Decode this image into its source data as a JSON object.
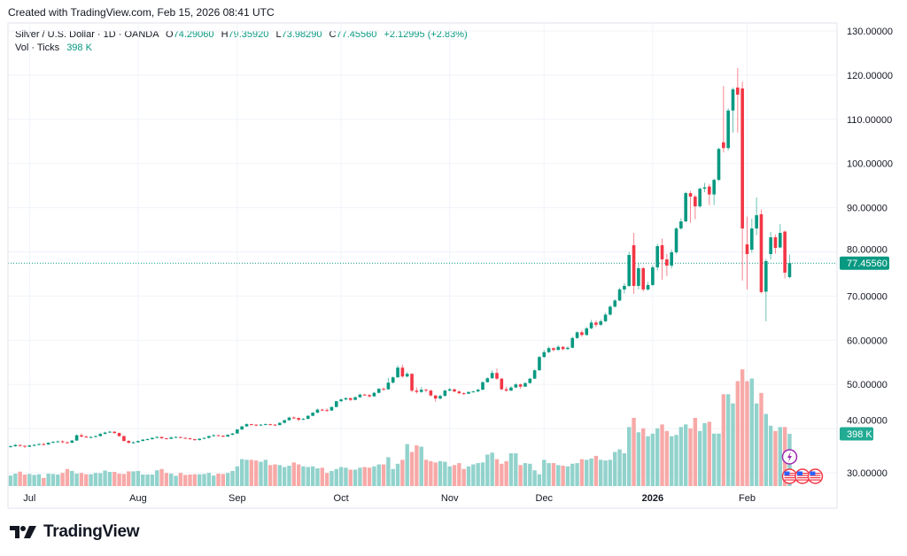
{
  "header": {
    "created_text": "Created with TradingView.com, Feb 15, 2026 08:41 UTC",
    "symbol": "Silver / U.S. Dollar · 1D · OANDA",
    "o_label": "O",
    "o_value": "74.29060",
    "h_label": "H",
    "h_value": "79.35920",
    "l_label": "L",
    "l_value": "73.98290",
    "c_label": "C",
    "c_value": "77.45560",
    "change": "+2.12995 (+2.83%)",
    "vol_label": "Vol · Ticks",
    "vol_value": "398 K"
  },
  "price_label": "77.45560",
  "volume_label": "398 K",
  "brand": "TradingView",
  "colors": {
    "up": "#089981",
    "down": "#F23645",
    "vol_up": "#92D2CC",
    "vol_down": "#F7A9A7",
    "event_purple": "#9C27B0"
  },
  "events": [
    {
      "icon": "lightning-icon"
    },
    {
      "icon": "us-flag-icon"
    },
    {
      "icon": "us-flag-icon"
    },
    {
      "icon": "us-flag-icon"
    }
  ],
  "chart_data": {
    "type": "candlestick",
    "title": "",
    "ylim": [
      25,
      132
    ],
    "y_ticks": [
      "130.00000",
      "120.00000",
      "110.00000",
      "100.00000",
      "90.00000",
      "80.00000",
      "70.00000",
      "60.00000",
      "50.00000",
      "40.00000",
      "30.00000"
    ],
    "y_tick_values": [
      130,
      120,
      110,
      100,
      90,
      80,
      70,
      60,
      50,
      40,
      30
    ],
    "x_ticks": [
      {
        "label": "Jul",
        "index": 4,
        "bold": false
      },
      {
        "label": "Aug",
        "index": 27,
        "bold": false
      },
      {
        "label": "Sep",
        "index": 48,
        "bold": false
      },
      {
        "label": "Oct",
        "index": 70,
        "bold": false
      },
      {
        "label": "Nov",
        "index": 93,
        "bold": false
      },
      {
        "label": "Dec",
        "index": 113,
        "bold": false
      },
      {
        "label": "2026",
        "index": 136,
        "bold": true
      },
      {
        "label": "Feb",
        "index": 156,
        "bold": false
      }
    ],
    "grid": true,
    "last_price": 77.4556,
    "ohlc_fields": [
      "open",
      "high",
      "low",
      "close"
    ],
    "candles": [
      [
        35.9,
        36.2,
        35.7,
        36.0
      ],
      [
        36.0,
        36.5,
        35.9,
        36.3
      ],
      [
        36.3,
        36.4,
        35.9,
        36.1
      ],
      [
        36.1,
        36.2,
        35.6,
        35.9
      ],
      [
        35.9,
        36.3,
        35.8,
        36.2
      ],
      [
        36.2,
        36.5,
        36.0,
        36.3
      ],
      [
        36.3,
        36.7,
        36.2,
        36.5
      ],
      [
        36.5,
        36.8,
        36.2,
        36.4
      ],
      [
        36.4,
        36.9,
        36.3,
        36.8
      ],
      [
        36.8,
        37.2,
        36.7,
        37.0
      ],
      [
        37.0,
        37.3,
        36.9,
        37.1
      ],
      [
        37.1,
        37.4,
        36.7,
        36.9
      ],
      [
        36.9,
        37.1,
        36.6,
        36.8
      ],
      [
        36.8,
        37.4,
        36.7,
        37.3
      ],
      [
        37.3,
        38.7,
        37.2,
        38.5
      ],
      [
        38.5,
        38.9,
        38.0,
        38.2
      ],
      [
        38.2,
        38.4,
        37.9,
        38.0
      ],
      [
        38.0,
        38.3,
        37.8,
        38.1
      ],
      [
        38.1,
        38.5,
        38.0,
        38.3
      ],
      [
        38.3,
        39.0,
        38.2,
        38.8
      ],
      [
        38.8,
        39.3,
        38.7,
        39.1
      ],
      [
        39.1,
        39.5,
        39.0,
        39.3
      ],
      [
        39.3,
        39.4,
        38.8,
        39.0
      ],
      [
        39.0,
        39.1,
        38.2,
        38.3
      ],
      [
        38.3,
        38.4,
        37.1,
        37.2
      ],
      [
        37.2,
        37.4,
        36.6,
        36.8
      ],
      [
        36.8,
        37.1,
        36.6,
        36.9
      ],
      [
        36.9,
        37.3,
        36.8,
        37.2
      ],
      [
        37.2,
        37.6,
        37.1,
        37.5
      ],
      [
        37.5,
        37.8,
        37.4,
        37.6
      ],
      [
        37.6,
        38.0,
        37.5,
        37.9
      ],
      [
        37.9,
        38.3,
        37.8,
        38.1
      ],
      [
        38.1,
        38.2,
        37.7,
        37.8
      ],
      [
        37.8,
        37.9,
        37.6,
        37.7
      ],
      [
        37.7,
        38.2,
        37.6,
        38.0
      ],
      [
        38.0,
        38.3,
        37.9,
        38.1
      ],
      [
        38.1,
        38.2,
        37.8,
        37.9
      ],
      [
        37.9,
        38.0,
        37.7,
        37.8
      ],
      [
        37.8,
        37.9,
        37.5,
        37.6
      ],
      [
        37.6,
        37.7,
        37.2,
        37.4
      ],
      [
        37.4,
        37.8,
        37.3,
        37.7
      ],
      [
        37.7,
        38.0,
        37.6,
        37.9
      ],
      [
        37.9,
        38.4,
        37.8,
        38.3
      ],
      [
        38.3,
        38.7,
        38.2,
        38.5
      ],
      [
        38.5,
        38.6,
        38.3,
        38.4
      ],
      [
        38.4,
        38.5,
        38.0,
        38.2
      ],
      [
        38.2,
        38.7,
        38.1,
        38.6
      ],
      [
        38.6,
        39.0,
        38.5,
        38.9
      ],
      [
        38.9,
        39.9,
        38.8,
        39.8
      ],
      [
        39.8,
        40.6,
        39.7,
        40.5
      ],
      [
        40.5,
        41.2,
        40.4,
        41.0
      ],
      [
        41.0,
        41.1,
        40.7,
        40.9
      ],
      [
        40.9,
        41.0,
        40.5,
        40.7
      ],
      [
        40.7,
        41.0,
        40.6,
        40.9
      ],
      [
        40.9,
        41.2,
        40.8,
        41.0
      ],
      [
        41.0,
        41.1,
        40.7,
        40.9
      ],
      [
        40.9,
        41.0,
        40.6,
        40.8
      ],
      [
        40.8,
        41.4,
        40.7,
        41.3
      ],
      [
        41.3,
        42.0,
        41.2,
        41.9
      ],
      [
        41.9,
        42.7,
        41.8,
        42.5
      ],
      [
        42.5,
        42.8,
        42.2,
        42.4
      ],
      [
        42.4,
        42.5,
        41.7,
        42.0
      ],
      [
        42.0,
        42.4,
        41.9,
        42.2
      ],
      [
        42.2,
        43.0,
        42.1,
        42.9
      ],
      [
        42.9,
        43.7,
        42.8,
        43.6
      ],
      [
        43.6,
        44.5,
        43.5,
        44.3
      ],
      [
        44.3,
        44.5,
        44.0,
        44.2
      ],
      [
        44.2,
        44.6,
        43.8,
        44.1
      ],
      [
        44.1,
        45.0,
        44.0,
        44.9
      ],
      [
        44.9,
        46.3,
        44.8,
        46.2
      ],
      [
        46.2,
        46.8,
        46.0,
        46.6
      ],
      [
        46.6,
        47.1,
        46.4,
        46.9
      ],
      [
        46.9,
        47.0,
        46.2,
        46.5
      ],
      [
        46.5,
        47.3,
        46.4,
        47.1
      ],
      [
        47.1,
        47.9,
        47.0,
        47.7
      ],
      [
        47.7,
        47.9,
        47.4,
        47.6
      ],
      [
        47.6,
        47.8,
        47.0,
        47.3
      ],
      [
        47.3,
        48.3,
        47.2,
        48.1
      ],
      [
        48.1,
        49.2,
        48.0,
        49.0
      ],
      [
        49.0,
        49.3,
        48.6,
        48.9
      ],
      [
        48.9,
        51.5,
        48.8,
        50.4
      ],
      [
        50.4,
        51.8,
        50.2,
        51.6
      ],
      [
        51.6,
        54.3,
        51.5,
        53.8
      ],
      [
        53.8,
        54.5,
        51.5,
        51.8
      ],
      [
        51.8,
        52.8,
        51.6,
        52.4
      ],
      [
        52.4,
        52.5,
        48.2,
        48.6
      ],
      [
        48.6,
        49.3,
        47.9,
        48.3
      ],
      [
        48.3,
        49.4,
        48.1,
        48.8
      ],
      [
        48.8,
        49.0,
        48.2,
        48.6
      ],
      [
        48.6,
        48.8,
        47.3,
        47.5
      ],
      [
        47.5,
        47.6,
        46.1,
        46.8
      ],
      [
        46.8,
        47.7,
        46.6,
        47.4
      ],
      [
        47.4,
        48.8,
        47.3,
        48.6
      ],
      [
        48.6,
        49.2,
        48.4,
        48.9
      ],
      [
        48.9,
        49.0,
        48.2,
        48.4
      ],
      [
        48.4,
        48.6,
        47.8,
        48.0
      ],
      [
        48.0,
        48.2,
        47.6,
        47.9
      ],
      [
        47.9,
        48.4,
        47.8,
        48.3
      ],
      [
        48.3,
        48.6,
        48.2,
        48.4
      ],
      [
        48.4,
        49.0,
        48.3,
        48.8
      ],
      [
        48.8,
        50.7,
        48.7,
        50.5
      ],
      [
        50.5,
        51.6,
        50.4,
        51.4
      ],
      [
        51.4,
        53.2,
        51.3,
        52.6
      ],
      [
        52.6,
        53.6,
        51.0,
        51.3
      ],
      [
        51.3,
        51.5,
        48.7,
        48.9
      ],
      [
        48.9,
        49.5,
        48.3,
        48.6
      ],
      [
        48.6,
        49.6,
        48.5,
        49.3
      ],
      [
        49.3,
        50.3,
        49.2,
        50.0
      ],
      [
        50.0,
        50.2,
        49.0,
        49.5
      ],
      [
        49.5,
        50.5,
        49.4,
        50.3
      ],
      [
        50.3,
        51.5,
        50.2,
        51.3
      ],
      [
        51.3,
        53.4,
        51.2,
        53.2
      ],
      [
        53.2,
        56.5,
        53.1,
        56.2
      ],
      [
        56.2,
        57.8,
        56.0,
        57.3
      ],
      [
        57.3,
        58.6,
        57.1,
        58.2
      ],
      [
        58.2,
        58.4,
        57.5,
        57.8
      ],
      [
        57.8,
        58.9,
        57.7,
        58.5
      ],
      [
        58.5,
        58.7,
        57.7,
        58.0
      ],
      [
        58.0,
        58.6,
        57.8,
        58.3
      ],
      [
        58.3,
        60.8,
        58.2,
        60.5
      ],
      [
        60.5,
        62.0,
        60.3,
        61.8
      ],
      [
        61.8,
        62.3,
        60.8,
        61.2
      ],
      [
        61.2,
        63.0,
        61.0,
        62.7
      ],
      [
        62.7,
        64.6,
        62.5,
        64.0
      ],
      [
        64.0,
        64.5,
        63.0,
        63.5
      ],
      [
        63.5,
        64.7,
        63.2,
        64.3
      ],
      [
        64.3,
        66.2,
        64.1,
        65.8
      ],
      [
        65.8,
        67.9,
        65.6,
        67.6
      ],
      [
        67.6,
        69.3,
        67.4,
        69.0
      ],
      [
        69.0,
        71.9,
        68.8,
        71.5
      ],
      [
        71.5,
        72.9,
        70.6,
        72.3
      ],
      [
        72.3,
        80.0,
        72.1,
        79.3
      ],
      [
        81.5,
        84.3,
        70.5,
        72.3
      ],
      [
        72.3,
        77.5,
        71.5,
        76.3
      ],
      [
        76.3,
        76.6,
        71.0,
        71.5
      ],
      [
        71.5,
        73.2,
        71.2,
        72.5
      ],
      [
        72.5,
        77.0,
        72.3,
        76.5
      ],
      [
        76.5,
        81.8,
        75.8,
        81.3
      ],
      [
        81.5,
        83.0,
        73.7,
        78.3
      ],
      [
        78.3,
        79.6,
        74.5,
        76.9
      ],
      [
        76.9,
        80.5,
        76.3,
        79.9
      ],
      [
        79.9,
        85.6,
        79.6,
        85.3
      ],
      [
        85.3,
        87.6,
        85.0,
        86.9
      ],
      [
        86.9,
        93.6,
        86.7,
        93.3
      ],
      [
        93.3,
        93.8,
        86.6,
        92.5
      ],
      [
        92.5,
        92.9,
        87.4,
        90.3
      ],
      [
        90.3,
        94.6,
        90.0,
        94.3
      ],
      [
        94.3,
        95.6,
        93.5,
        94.6
      ],
      [
        94.8,
        95.4,
        90.6,
        93.0
      ],
      [
        93.0,
        96.6,
        90.6,
        96.3
      ],
      [
        96.3,
        103.6,
        96.0,
        103.3
      ],
      [
        104.8,
        117.5,
        102.5,
        103.5
      ],
      [
        103.5,
        112.5,
        103.0,
        112.0
      ],
      [
        112.0,
        117.2,
        107.0,
        116.8
      ],
      [
        117.2,
        121.6,
        107.0,
        115.6
      ],
      [
        117.0,
        118.5,
        73.5,
        85.3
      ],
      [
        81.7,
        88.0,
        71.5,
        79.5
      ],
      [
        80.5,
        87.5,
        79.8,
        85.3
      ],
      [
        85.3,
        92.3,
        83.8,
        88.3
      ],
      [
        88.5,
        89.6,
        70.6,
        70.9
      ],
      [
        71.0,
        78.4,
        64.3,
        77.9
      ],
      [
        79.5,
        84.5,
        78.3,
        83.3
      ],
      [
        83.3,
        83.9,
        79.6,
        80.9
      ],
      [
        81.0,
        86.3,
        80.8,
        84.3
      ],
      [
        84.6,
        84.8,
        74.0,
        75.3
      ],
      [
        74.2906,
        79.3592,
        73.9829,
        77.4556
      ]
    ],
    "volume_unit": "K",
    "volume": [
      80,
      95,
      110,
      88,
      92,
      85,
      90,
      62,
      95,
      92,
      88,
      100,
      130,
      115,
      95,
      100,
      90,
      90,
      100,
      98,
      118,
      108,
      108,
      95,
      92,
      112,
      112,
      115,
      88,
      88,
      88,
      120,
      130,
      100,
      95,
      78,
      100,
      85,
      88,
      90,
      90,
      92,
      100,
      80,
      95,
      92,
      100,
      115,
      150,
      205,
      200,
      200,
      195,
      185,
      200,
      160,
      165,
      160,
      145,
      155,
      180,
      165,
      150,
      145,
      150,
      135,
      140,
      100,
      115,
      130,
      145,
      140,
      125,
      125,
      140,
      145,
      140,
      150,
      165,
      165,
      220,
      130,
      170,
      200,
      320,
      260,
      310,
      300,
      200,
      190,
      180,
      190,
      185,
      150,
      160,
      175,
      130,
      150,
      165,
      175,
      180,
      240,
      255,
      205,
      170,
      190,
      250,
      250,
      160,
      175,
      170,
      120,
      90,
      200,
      175,
      175,
      160,
      155,
      150,
      170,
      175,
      205,
      200,
      210,
      230,
      200,
      195,
      200,
      260,
      280,
      250,
      450,
      520,
      410,
      440,
      380,
      400,
      440,
      470,
      420,
      380,
      390,
      450,
      470,
      440,
      520,
      420,
      480,
      490,
      400,
      400,
      700,
      700,
      630,
      800,
      890,
      800,
      820,
      630,
      710,
      550,
      460,
      420,
      450,
      450,
      398
    ]
  }
}
